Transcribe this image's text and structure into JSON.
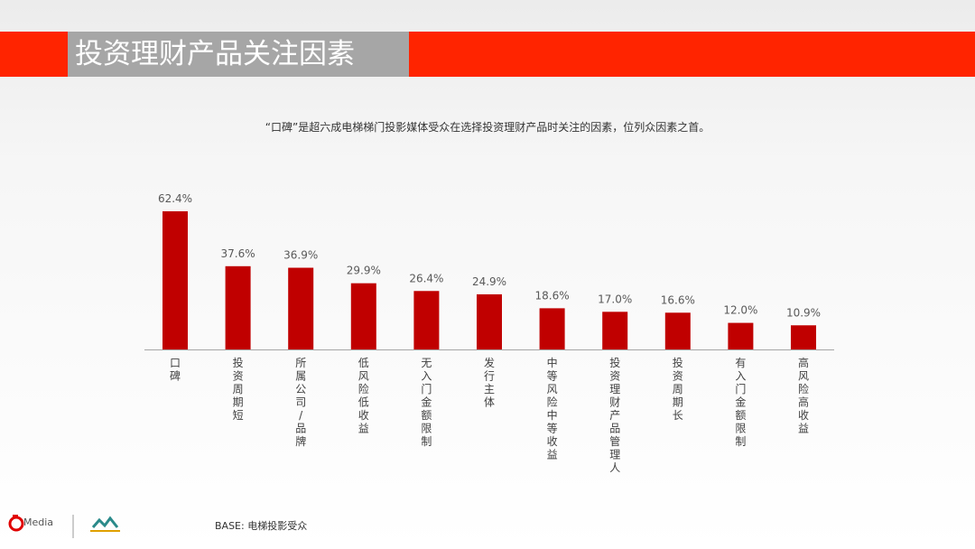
{
  "slide": {
    "title": "投资理财产品关注因素",
    "subtitle": "“口碑”是超六成电梯梯门投影媒体受众在选择投资理财产品时关注的因素，位列众因素之首。",
    "base_note": "BASE: 电梯投影受众",
    "logo_text": "Media"
  },
  "chart_data": {
    "type": "bar",
    "categories": [
      "口碑",
      "投资周期短",
      "所属公司/品牌",
      "低风险低收益",
      "无入门金额限制",
      "发行主体",
      "中等风险中等收益",
      "投资理财产品管理人",
      "投资周期长",
      "有入门金额限制",
      "高风险高收益"
    ],
    "values": [
      62.4,
      37.6,
      36.9,
      29.9,
      26.4,
      24.9,
      18.6,
      17.0,
      16.6,
      12.0,
      10.9
    ],
    "value_labels": [
      "62.4%",
      "37.6%",
      "36.9%",
      "29.9%",
      "26.4%",
      "24.9%",
      "18.6%",
      "17.0%",
      "16.6%",
      "12.0%",
      "10.9%"
    ],
    "ylim": [
      0,
      62.4
    ],
    "bar_color": "#c00000",
    "grid": false,
    "legend": "none"
  }
}
